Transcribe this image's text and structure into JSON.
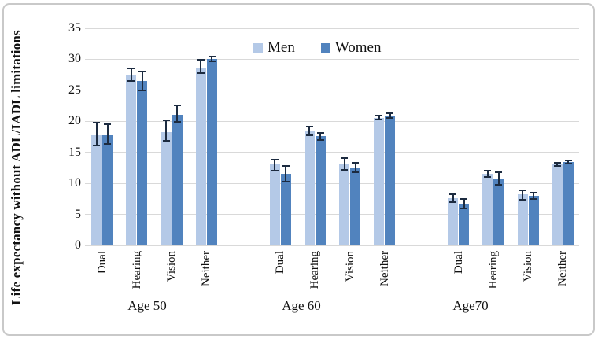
{
  "chart_data": {
    "type": "bar",
    "title": "",
    "xlabel": "",
    "ylabel": "Life expectancy without ADL/IADL limitations",
    "ylim": [
      0,
      35
    ],
    "yticks": [
      0,
      5,
      10,
      15,
      20,
      25,
      30,
      35
    ],
    "grid": true,
    "legend_position": "top-center-inside",
    "groups": [
      "Age 50",
      "Age 60",
      "Age70"
    ],
    "categories": [
      "Dual",
      "Hearing",
      "Vision",
      "Neither"
    ],
    "series": [
      {
        "name": "Men",
        "color": "#b4c9e7",
        "values": [
          [
            17.8,
            27.5,
            18.3,
            28.7
          ],
          [
            13.0,
            18.5,
            13.1,
            20.6
          ],
          [
            7.6,
            11.6,
            8.2,
            13.1
          ]
        ],
        "error_low": [
          [
            16.0,
            26.4,
            16.8,
            27.6
          ],
          [
            11.9,
            17.6,
            12.0,
            20.2
          ],
          [
            6.8,
            10.9,
            7.2,
            12.7
          ]
        ],
        "error_high": [
          [
            19.9,
            28.7,
            20.3,
            30.0
          ],
          [
            14.0,
            19.3,
            14.2,
            21.1
          ],
          [
            8.4,
            12.2,
            9.0,
            13.5
          ]
        ]
      },
      {
        "name": "Women",
        "color": "#5183be",
        "values": [
          [
            17.8,
            26.5,
            21.1,
            30.1
          ],
          [
            11.6,
            17.6,
            12.6,
            20.8
          ],
          [
            6.7,
            10.6,
            8.0,
            13.4
          ]
        ],
        "error_low": [
          [
            16.2,
            24.8,
            19.8,
            29.6
          ],
          [
            10.2,
            16.9,
            11.7,
            20.4
          ],
          [
            5.8,
            9.6,
            7.4,
            13.0
          ]
        ],
        "error_high": [
          [
            19.7,
            28.2,
            22.7,
            30.5
          ],
          [
            12.9,
            18.3,
            13.4,
            21.4
          ],
          [
            7.6,
            11.9,
            8.6,
            13.8
          ]
        ]
      }
    ],
    "error_bar_color": "#1c2b40",
    "gridline_color": "#d9d9d9"
  }
}
